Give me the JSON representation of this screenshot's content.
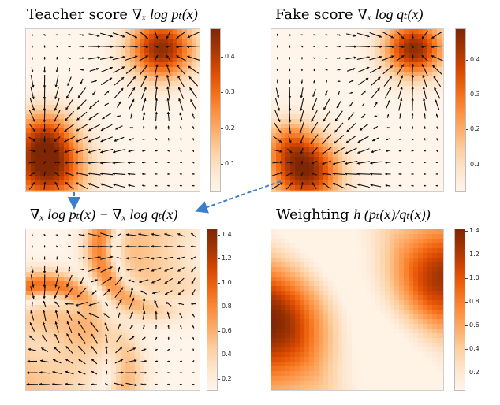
{
  "panels": [
    {
      "id": "teacher",
      "title_text": "Teacher score",
      "title_math": "∇ₓ log pₜ(x)",
      "field": "teacher",
      "colorbar": {
        "ticks": [
          "0.1",
          "0.2",
          "0.3",
          "0.4"
        ],
        "min": 0.02,
        "max": 0.48
      }
    },
    {
      "id": "fake",
      "title_text": "Fake score",
      "title_math": "∇ₓ log qₜ(x)",
      "field": "fake",
      "colorbar": {
        "ticks": [
          "0.1",
          "0.2",
          "0.3",
          "0.4"
        ],
        "min": 0.02,
        "max": 0.49
      }
    },
    {
      "id": "difference",
      "title_text": "",
      "title_math": "∇ₓ log pₜ(x) − ∇ₓ log qₜ(x)",
      "field": "difference",
      "colorbar": {
        "ticks": [
          "0.2",
          "0.4",
          "0.6",
          "0.8",
          "1.0",
          "1.2",
          "1.4"
        ],
        "min": 0.1,
        "max": 1.45
      }
    },
    {
      "id": "weighting",
      "title_text": "Weighting",
      "title_math": "h (pₜ(x)/qₜ(x))",
      "field": "weighting",
      "colorbar": {
        "ticks": [
          "0.2",
          "0.4",
          "0.6",
          "0.8",
          "1.0",
          "1.2",
          "1.4"
        ],
        "min": 0.05,
        "max": 1.42
      }
    }
  ],
  "colors": {
    "cmap": [
      "#fff5eb",
      "#fee6ce",
      "#fdd0a2",
      "#fdae6b",
      "#fd8d3c",
      "#f16913",
      "#d94801",
      "#a63603",
      "#7f2704"
    ],
    "quiver": "#111111",
    "connector": "#3a7fcf"
  }
}
